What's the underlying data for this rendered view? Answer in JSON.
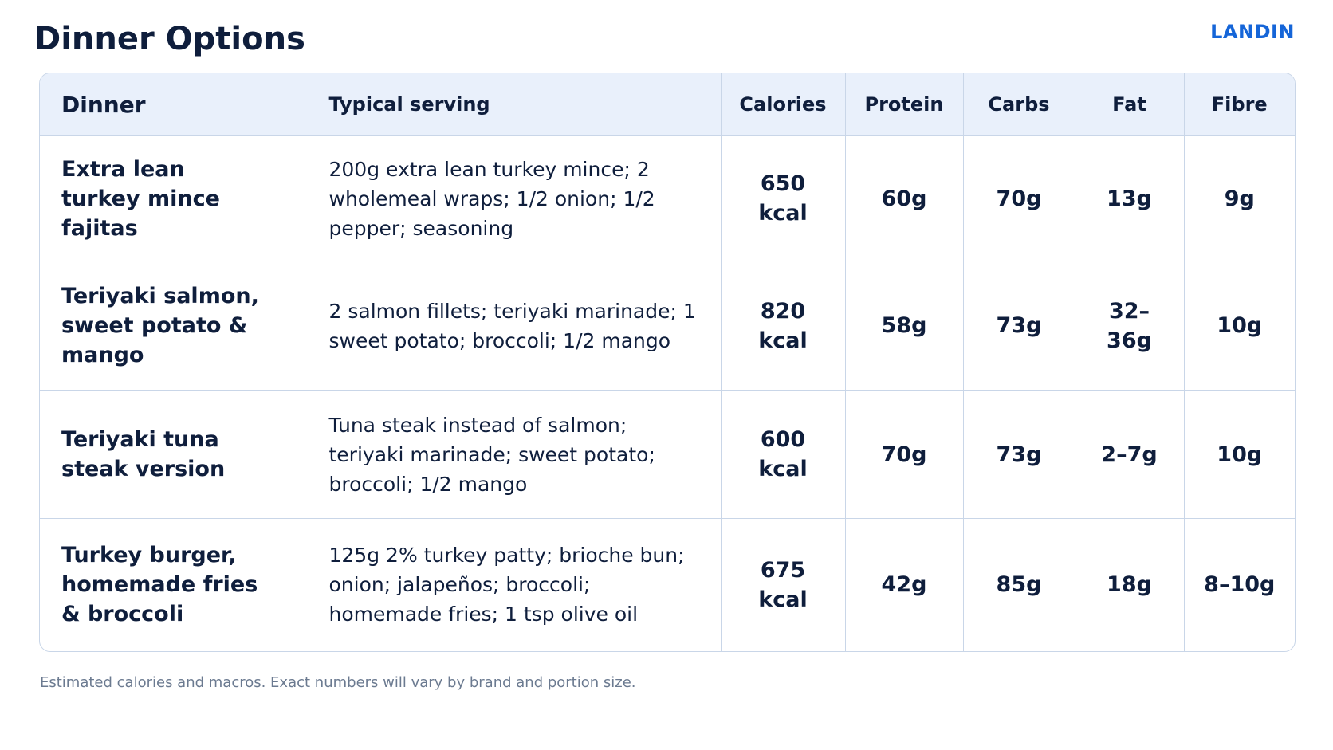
{
  "header": {
    "title": "Dinner Options",
    "brand": "LANDIN"
  },
  "table": {
    "columns": [
      "Dinner",
      "Typical serving",
      "Calories",
      "Protein",
      "Carbs",
      "Fat",
      "Fibre"
    ],
    "rows": [
      [
        "Extra lean turkey mince fajitas",
        "200g extra lean turkey mince; 2 wholemeal wraps; 1/2 onion; 1/2 pepper; seasoning",
        "650 kcal",
        "60g",
        "70g",
        "13g",
        "9g"
      ],
      [
        "Teriyaki salmon, sweet potato & mango",
        "2 salmon fillets; teriyaki marinade; 1 sweet potato; broccoli; 1/2 mango",
        "820 kcal",
        "58g",
        "73g",
        "32–36g",
        "10g"
      ],
      [
        "Teriyaki tuna steak version",
        "Tuna steak instead of salmon; teriyaki marinade; sweet potato; broccoli; 1/2 mango",
        "600 kcal",
        "70g",
        "73g",
        "2–7g",
        "10g"
      ],
      [
        "Turkey burger, homemade fries & broccoli",
        "125g 2% turkey patty; brioche bun; onion; jalapeños; broccoli; homemade fries; 1 tsp olive oil",
        "675 kcal",
        "42g",
        "85g",
        "18g",
        "8–10g"
      ]
    ]
  },
  "footnote": "Estimated calories and macros. Exact numbers will vary by brand and portion size."
}
